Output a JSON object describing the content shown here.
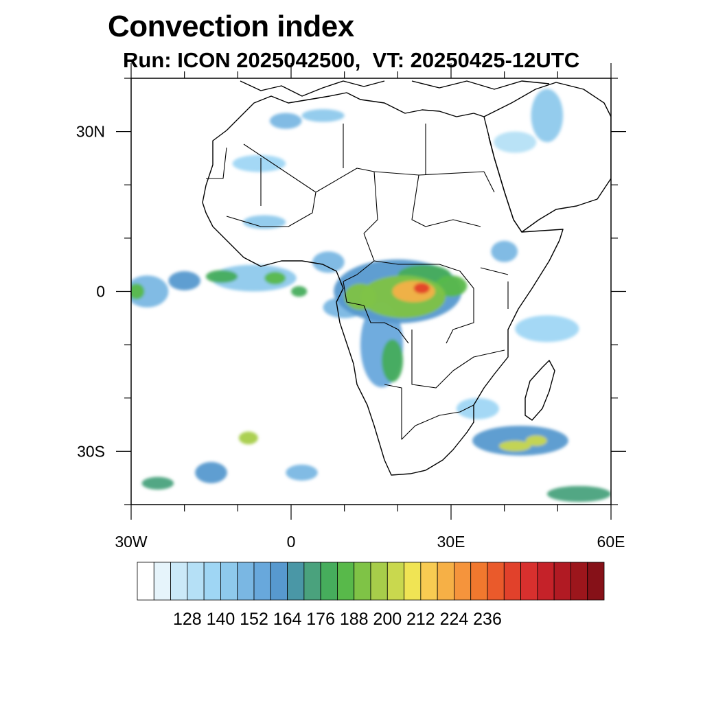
{
  "title": "Convection index",
  "subtitle": "Run: ICON 2025042500,  VT: 20250425-12UTC",
  "map": {
    "lon_range": [
      -30,
      60
    ],
    "lat_range": [
      -40,
      40
    ],
    "lon_tick_labels": [
      {
        "lon": -30,
        "label": "30W"
      },
      {
        "lon": 0,
        "label": "0"
      },
      {
        "lon": 30,
        "label": "30E"
      },
      {
        "lon": 60,
        "label": "60E"
      }
    ],
    "lat_tick_labels": [
      {
        "lat": 30,
        "label": "30N"
      },
      {
        "lat": 0,
        "label": "0"
      },
      {
        "lat": -30,
        "label": "30S"
      }
    ],
    "lon_minor_ticks": [
      -30,
      -20,
      -10,
      0,
      10,
      20,
      30,
      40,
      50,
      60
    ],
    "lat_minor_ticks": [
      40,
      30,
      20,
      10,
      0,
      -10,
      -20,
      -30,
      -40
    ]
  },
  "colorbar": {
    "colors": [
      "#ffffff",
      "#e6f4fb",
      "#cbe9f8",
      "#b5e0f6",
      "#9fd6f4",
      "#8ec9ec",
      "#7ab7e3",
      "#68a8dc",
      "#5799cf",
      "#4a97a6",
      "#4aa27d",
      "#46ad5c",
      "#58b94a",
      "#7fc346",
      "#a7cd4a",
      "#c9d84e",
      "#f0e454",
      "#f8cb52",
      "#f6b046",
      "#f5943c",
      "#f1782e",
      "#ea5a2b",
      "#e1412b",
      "#d8302e",
      "#c52229",
      "#b11a23",
      "#9c161c",
      "#861118"
    ],
    "labels": [
      "128",
      "140",
      "152",
      "164",
      "176",
      "188",
      "200",
      "212",
      "224",
      "236"
    ],
    "label_every": 2,
    "label_start_boundary": 2
  },
  "field_blobs": [
    {
      "lon": 20,
      "lat": 0,
      "rx": 12,
      "ry": 6,
      "level": 8
    },
    {
      "lon": 21,
      "lat": -1,
      "rx": 8,
      "ry": 4,
      "level": 13
    },
    {
      "lon": 23,
      "lat": 0,
      "rx": 4,
      "ry": 2,
      "level": 18
    },
    {
      "lon": 24.5,
      "lat": 0.6,
      "rx": 1.5,
      "ry": 1,
      "level": 22
    },
    {
      "lon": 13,
      "lat": -1,
      "rx": 3,
      "ry": 2.5,
      "level": 13
    },
    {
      "lon": 25,
      "lat": 3,
      "rx": 5,
      "ry": 2,
      "level": 11
    },
    {
      "lon": 30,
      "lat": 1,
      "rx": 3,
      "ry": 2,
      "level": 12
    },
    {
      "lon": 17,
      "lat": -10,
      "rx": 4,
      "ry": 8,
      "level": 7
    },
    {
      "lon": 19,
      "lat": -13,
      "rx": 2,
      "ry": 4,
      "level": 11
    },
    {
      "lon": 10,
      "lat": -3,
      "rx": 4,
      "ry": 2,
      "level": 6
    },
    {
      "lon": -7,
      "lat": 2.5,
      "rx": 8,
      "ry": 2.5,
      "level": 5
    },
    {
      "lon": -13,
      "lat": 2.8,
      "rx": 3,
      "ry": 1.2,
      "level": 11
    },
    {
      "lon": -3,
      "lat": 2.5,
      "rx": 2,
      "ry": 1.2,
      "level": 12
    },
    {
      "lon": 1.5,
      "lat": 0,
      "rx": 1.5,
      "ry": 1,
      "level": 11
    },
    {
      "lon": -27,
      "lat": 0,
      "rx": 4,
      "ry": 3,
      "level": 6
    },
    {
      "lon": -29,
      "lat": 0,
      "rx": 1.5,
      "ry": 1.5,
      "level": 12
    },
    {
      "lon": -20,
      "lat": 2,
      "rx": 3,
      "ry": 1.8,
      "level": 8
    },
    {
      "lon": 40,
      "lat": 7.5,
      "rx": 2.5,
      "ry": 2,
      "level": 6
    },
    {
      "lon": 48,
      "lat": -7,
      "rx": 6,
      "ry": 2.5,
      "level": 4
    },
    {
      "lon": 35,
      "lat": -22,
      "rx": 4,
      "ry": 2,
      "level": 4
    },
    {
      "lon": 43,
      "lat": -28,
      "rx": 9,
      "ry": 2.8,
      "level": 8
    },
    {
      "lon": 42,
      "lat": -29,
      "rx": 3,
      "ry": 1,
      "level": 15
    },
    {
      "lon": 46,
      "lat": -28,
      "rx": 2,
      "ry": 1,
      "level": 15
    },
    {
      "lon": 54,
      "lat": -38,
      "rx": 6,
      "ry": 1.5,
      "level": 10
    },
    {
      "lon": -25,
      "lat": -36,
      "rx": 3,
      "ry": 1.2,
      "level": 10
    },
    {
      "lon": -15,
      "lat": -34,
      "rx": 3,
      "ry": 2,
      "level": 8
    },
    {
      "lon": -8,
      "lat": -27.5,
      "rx": 1.8,
      "ry": 1.2,
      "level": 14
    },
    {
      "lon": 2,
      "lat": -34,
      "rx": 3,
      "ry": 1.5,
      "level": 6
    },
    {
      "lon": -1,
      "lat": 32,
      "rx": 3,
      "ry": 1.5,
      "level": 6
    },
    {
      "lon": -6,
      "lat": 24,
      "rx": 5,
      "ry": 1.6,
      "level": 4
    },
    {
      "lon": 6,
      "lat": 33,
      "rx": 4,
      "ry": 1.2,
      "level": 5
    },
    {
      "lon": 48,
      "lat": 33,
      "rx": 3,
      "ry": 5,
      "level": 5
    },
    {
      "lon": 42,
      "lat": 28,
      "rx": 4,
      "ry": 2,
      "level": 3
    },
    {
      "lon": 7,
      "lat": 5.5,
      "rx": 3,
      "ry": 2,
      "level": 6
    },
    {
      "lon": -5,
      "lat": 13,
      "rx": 4,
      "ry": 1.3,
      "level": 5
    }
  ]
}
